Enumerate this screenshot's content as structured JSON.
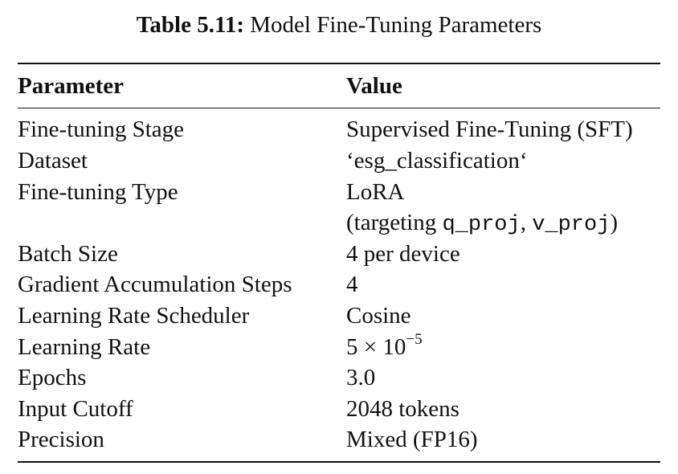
{
  "caption": {
    "label": "Table 5.11:",
    "title": "Model Fine-Tuning Parameters"
  },
  "headers": {
    "parameter": "Parameter",
    "value": "Value"
  },
  "rows": [
    {
      "parameter": "Fine-tuning Stage",
      "value": "Supervised Fine-Tuning (SFT)"
    },
    {
      "parameter": "Dataset",
      "value": "‘esg_classification‘"
    },
    {
      "parameter": "Fine-tuning Type",
      "value": "LoRA"
    },
    {
      "parameter": "",
      "value_prefix": "(targeting ",
      "code_1": "q_proj",
      "sep": ", ",
      "code_2": "v_proj",
      "value_suffix": ")"
    },
    {
      "parameter": "Batch Size",
      "value": "4 per device"
    },
    {
      "parameter": "Gradient Accumulation Steps",
      "value": "4"
    },
    {
      "parameter": "Learning Rate Scheduler",
      "value": "Cosine"
    },
    {
      "parameter": "Learning Rate",
      "value_base": "5 × 10",
      "value_exp": "−5"
    },
    {
      "parameter": "Epochs",
      "value": "3.0"
    },
    {
      "parameter": "Input Cutoff",
      "value": "2048 tokens"
    },
    {
      "parameter": "Precision",
      "value": "Mixed (FP16)"
    }
  ]
}
